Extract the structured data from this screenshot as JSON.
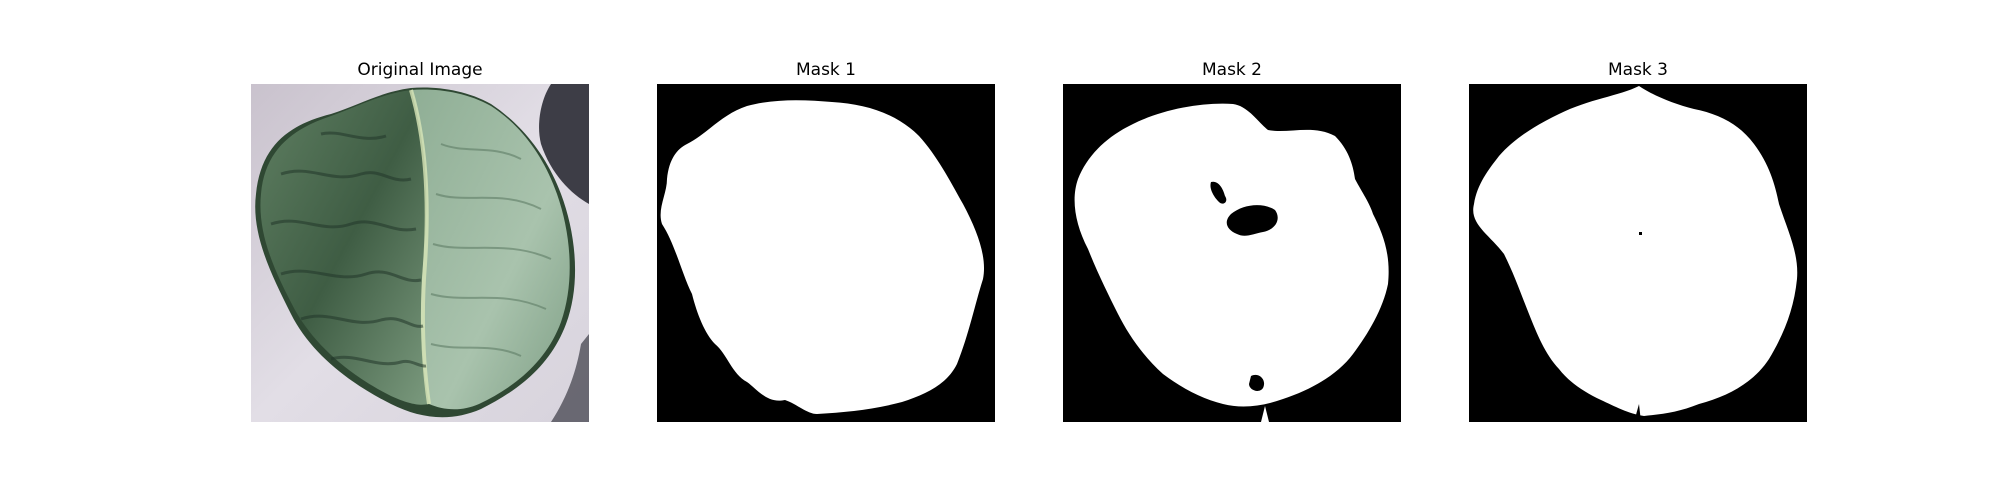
{
  "figure": {
    "panels": [
      {
        "title": "Original Image",
        "kind": "photo",
        "subject": "cabbage-leaf"
      },
      {
        "title": "Mask 1",
        "kind": "mask"
      },
      {
        "title": "Mask 2",
        "kind": "mask"
      },
      {
        "title": "Mask 3",
        "kind": "mask"
      }
    ],
    "colors": {
      "background": "#ffffff",
      "mask_foreground": "#ffffff",
      "mask_background": "#000000",
      "leaf_dark": "#2f4a34",
      "leaf_mid": "#6f8f76",
      "leaf_light": "#a9c2ad",
      "backdrop": "#d6d2da"
    }
  }
}
